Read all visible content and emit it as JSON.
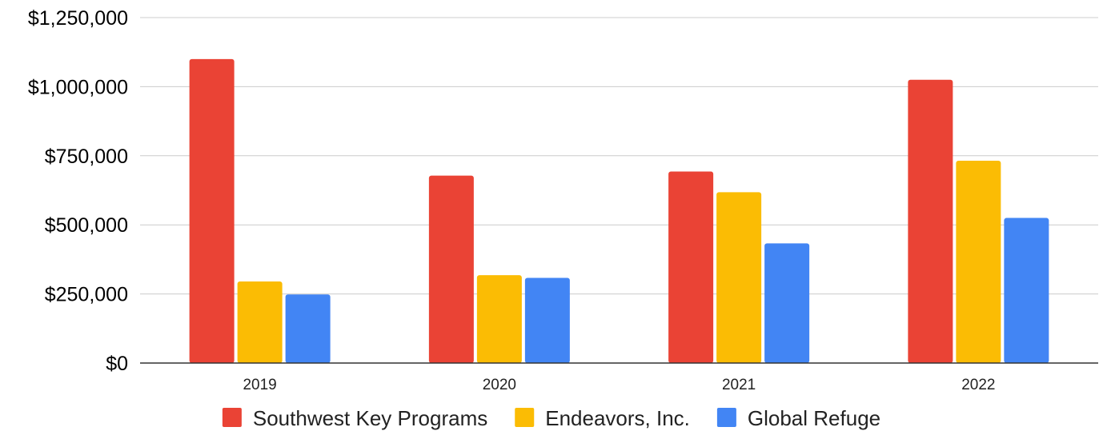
{
  "chart_data": {
    "type": "bar",
    "title": "",
    "xlabel": "",
    "ylabel": "",
    "categories": [
      "2019",
      "2020",
      "2021",
      "2022"
    ],
    "series": [
      {
        "name": "Southwest Key Programs",
        "color": "#ea4335",
        "values": [
          1100000,
          678000,
          693000,
          1025000
        ]
      },
      {
        "name": "Endeavors, Inc.",
        "color": "#fbbc04",
        "values": [
          295000,
          318000,
          618000,
          732000
        ]
      },
      {
        "name": "Global Refuge",
        "color": "#4285f4",
        "values": [
          248000,
          308000,
          433000,
          525000
        ]
      }
    ],
    "ylim": [
      0,
      1250000
    ],
    "yticks": [
      0,
      250000,
      500000,
      750000,
      1000000,
      1250000
    ],
    "ytick_labels": [
      "$0",
      "$250,000",
      "$500,000",
      "$750,000",
      "$1,000,000",
      "$1,250,000"
    ],
    "grid": true,
    "legend_position": "bottom"
  }
}
